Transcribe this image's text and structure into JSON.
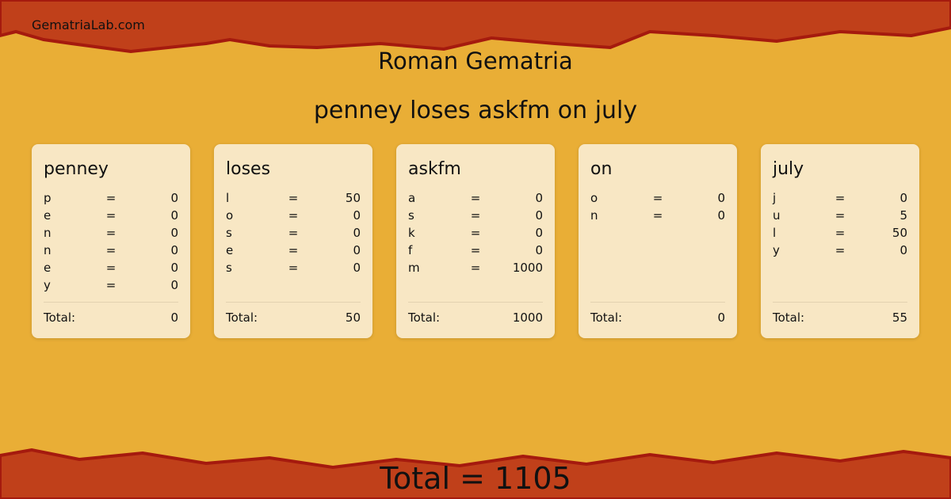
{
  "site": "GematriaLab.com",
  "title": "Roman Gematria",
  "phrase": "penney loses askfm on july",
  "colors": {
    "band": "#c0401a",
    "background": "#e9ae36",
    "card": "#f8e7c4"
  },
  "total_label": "Total:",
  "cards": [
    {
      "word": "penney",
      "letters": [
        [
          "p",
          "=",
          "0"
        ],
        [
          "e",
          "=",
          "0"
        ],
        [
          "n",
          "=",
          "0"
        ],
        [
          "n",
          "=",
          "0"
        ],
        [
          "e",
          "=",
          "0"
        ],
        [
          "y",
          "=",
          "0"
        ]
      ],
      "total": "0"
    },
    {
      "word": "loses",
      "letters": [
        [
          "l",
          "=",
          "50"
        ],
        [
          "o",
          "=",
          "0"
        ],
        [
          "s",
          "=",
          "0"
        ],
        [
          "e",
          "=",
          "0"
        ],
        [
          "s",
          "=",
          "0"
        ]
      ],
      "total": "50"
    },
    {
      "word": "askfm",
      "letters": [
        [
          "a",
          "=",
          "0"
        ],
        [
          "s",
          "=",
          "0"
        ],
        [
          "k",
          "=",
          "0"
        ],
        [
          "f",
          "=",
          "0"
        ],
        [
          "m",
          "=",
          "1000"
        ]
      ],
      "total": "1000"
    },
    {
      "word": "on",
      "letters": [
        [
          "o",
          "=",
          "0"
        ],
        [
          "n",
          "=",
          "0"
        ]
      ],
      "total": "0"
    },
    {
      "word": "july",
      "letters": [
        [
          "j",
          "=",
          "0"
        ],
        [
          "u",
          "=",
          "5"
        ],
        [
          "l",
          "=",
          "50"
        ],
        [
          "y",
          "=",
          "0"
        ]
      ],
      "total": "55"
    }
  ],
  "grand_total": "Total = 1105"
}
